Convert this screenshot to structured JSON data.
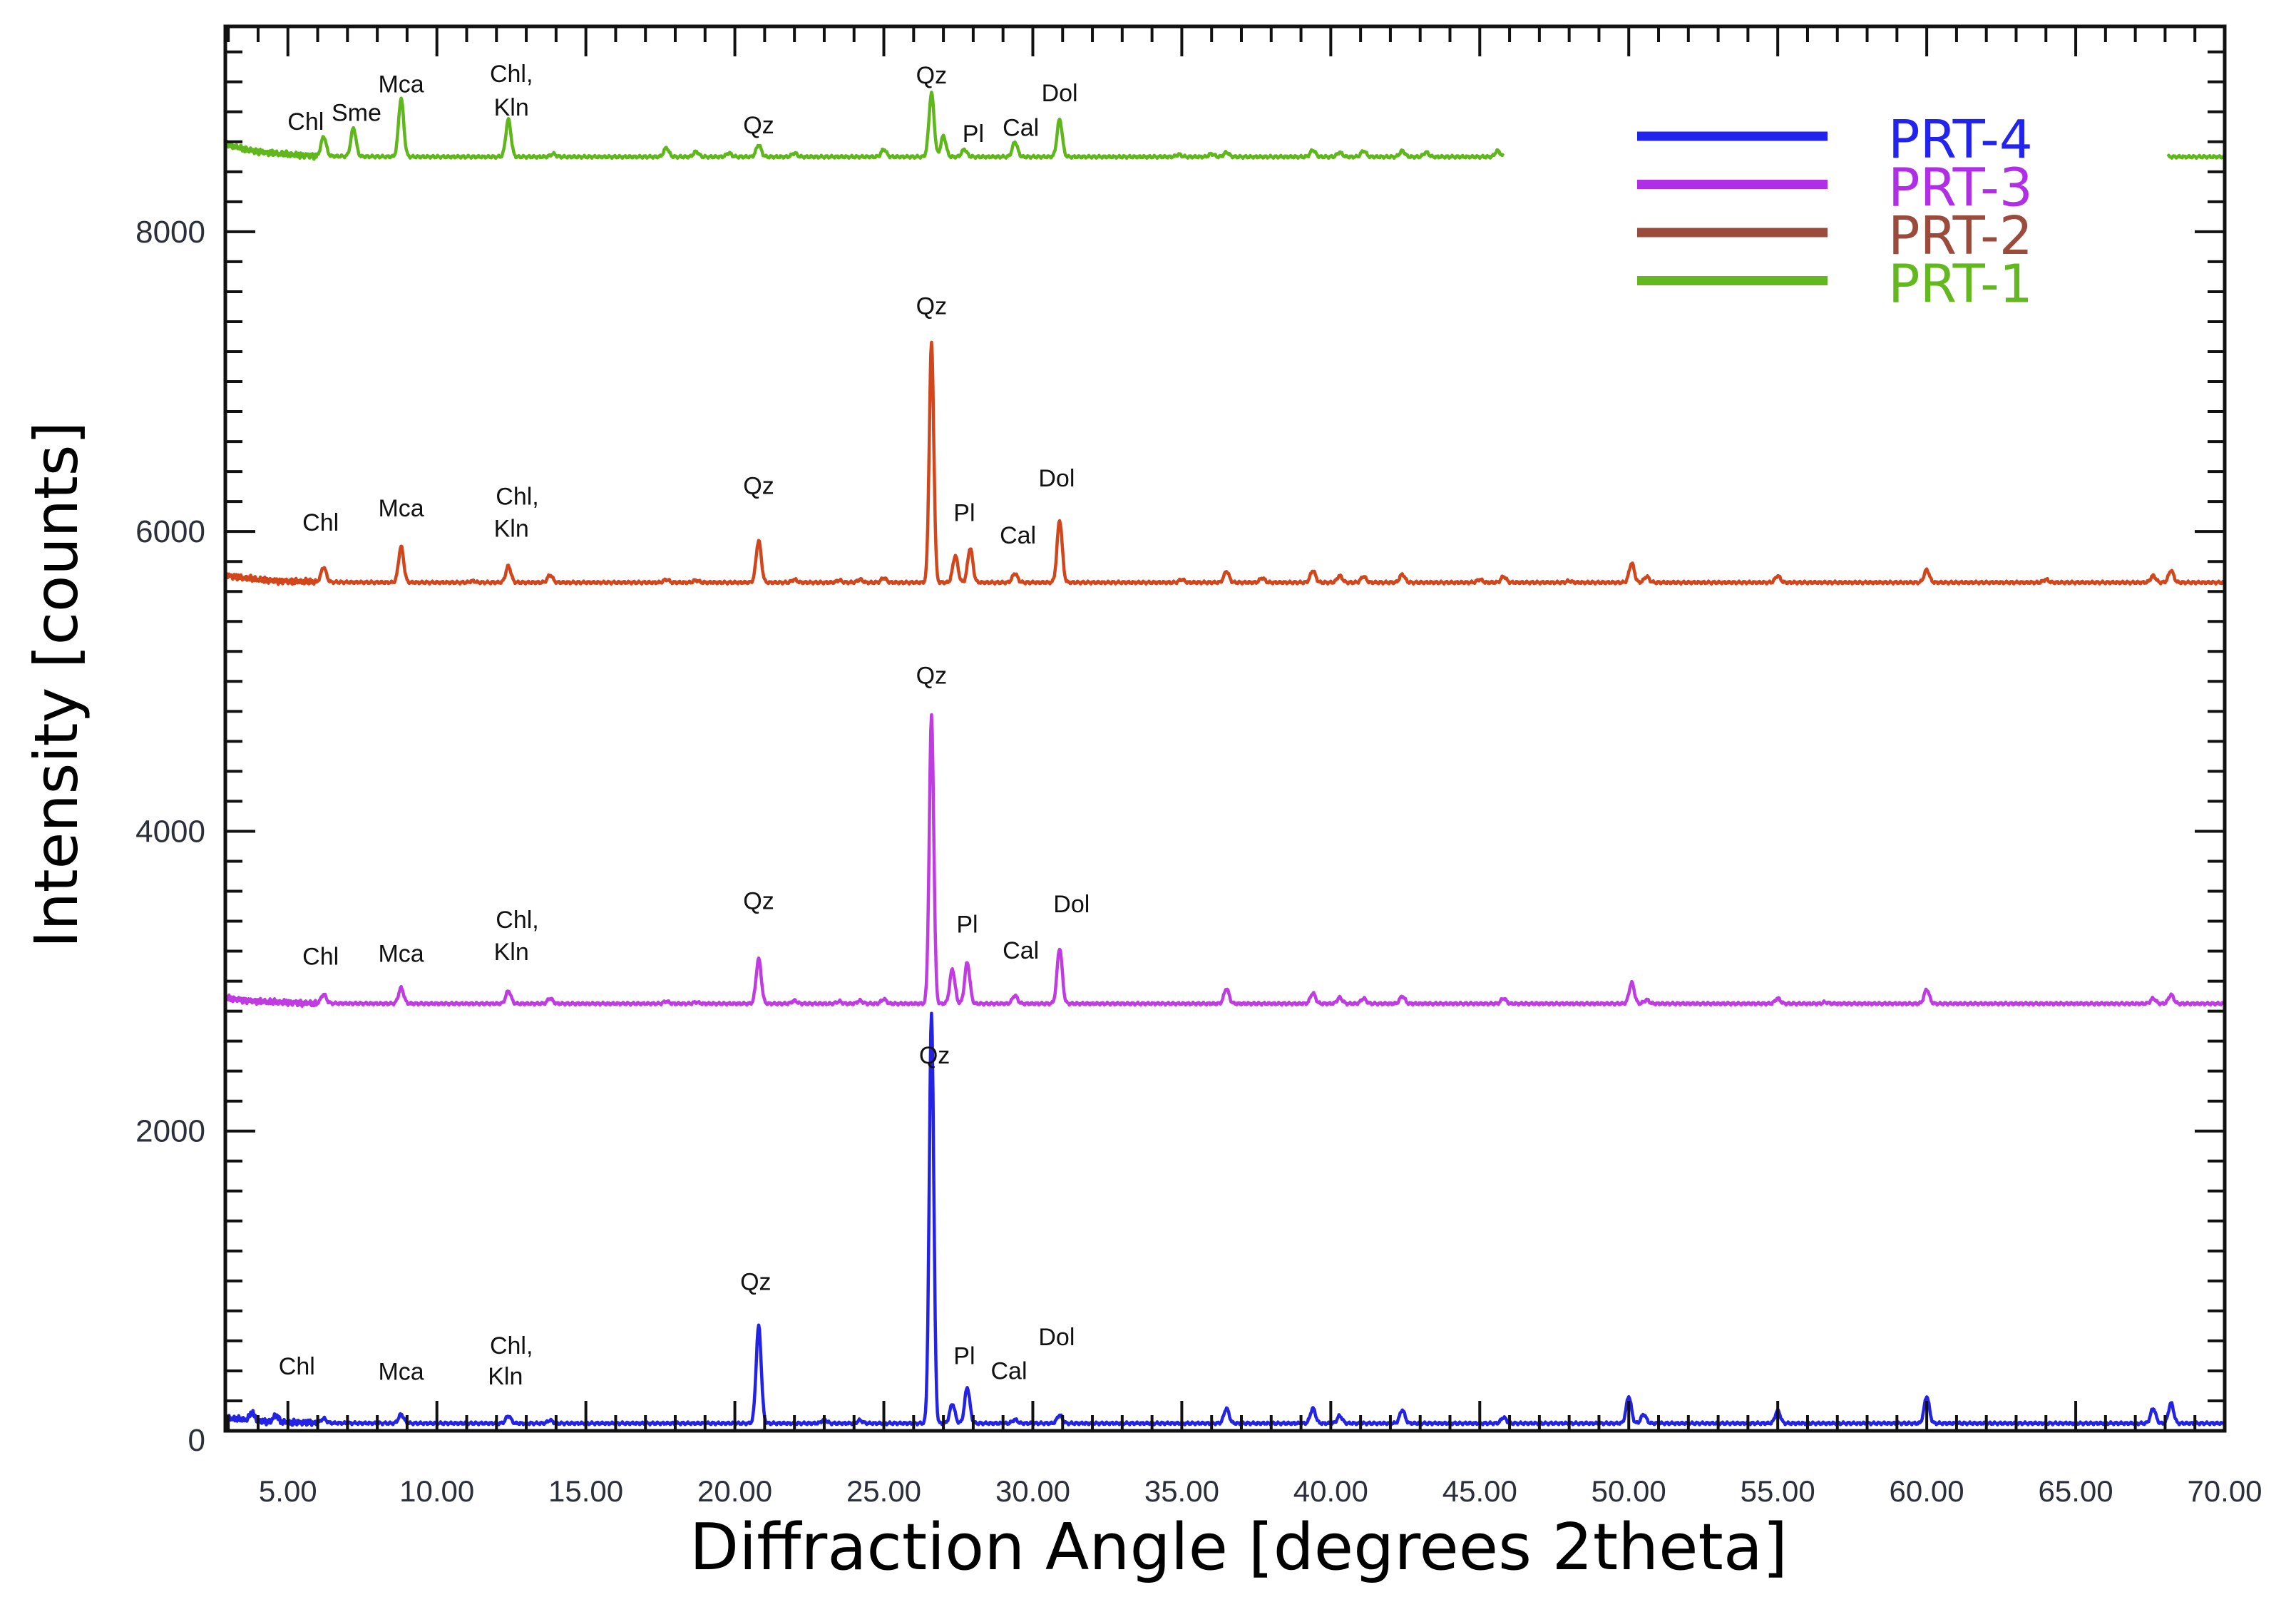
{
  "chart_data": {
    "type": "line",
    "title": "",
    "xlabel": "Diffraction Angle [degrees 2theta]",
    "ylabel": "Intensity [counts]",
    "xlim": [
      2.9,
      70.0
    ],
    "ylim": [
      0,
      9370
    ],
    "grid": false,
    "legend_position": "upper right",
    "x_ticks": [
      5,
      10,
      15,
      20,
      25,
      30,
      35,
      40,
      45,
      50,
      55,
      60,
      65,
      70
    ],
    "x_tick_labels": [
      "5.00",
      "10.00",
      "15.00",
      "20.00",
      "25.00",
      "30.00",
      "35.00",
      "40.00",
      "45.00",
      "50.00",
      "55.00",
      "60.00",
      "65.00",
      "70.00"
    ],
    "y_ticks": [
      0,
      2000,
      4000,
      6000,
      8000
    ],
    "y_tick_labels": [
      "0",
      "2000",
      "4000",
      "6000",
      "8000"
    ],
    "legend": [
      {
        "label": "PRT-4",
        "color": "#2323ee"
      },
      {
        "label": "PRT-3",
        "color": "#b02ee6"
      },
      {
        "label": "PRT-2",
        "color": "#9a4b3c"
      },
      {
        "label": "PRT-1",
        "color": "#62b81e"
      }
    ],
    "series": [
      {
        "name": "PRT-1",
        "color": "#5fb71c",
        "baseline": 8500,
        "left_rise": 90,
        "visible_ranges": [
          [
            2.9,
            45.8
          ],
          [
            68.1,
            70.0
          ]
        ],
        "peaks": [
          {
            "x": 6.2,
            "y": 8630
          },
          {
            "x": 7.2,
            "y": 8690
          },
          {
            "x": 8.8,
            "y": 8890
          },
          {
            "x": 12.4,
            "y": 8750
          },
          {
            "x": 13.9,
            "y": 8520
          },
          {
            "x": 17.7,
            "y": 8560
          },
          {
            "x": 18.7,
            "y": 8535
          },
          {
            "x": 19.8,
            "y": 8525
          },
          {
            "x": 20.8,
            "y": 8580
          },
          {
            "x": 22.0,
            "y": 8525
          },
          {
            "x": 25.0,
            "y": 8550
          },
          {
            "x": 26.6,
            "y": 8925
          },
          {
            "x": 27.0,
            "y": 8640
          },
          {
            "x": 27.7,
            "y": 8550
          },
          {
            "x": 29.4,
            "y": 8600
          },
          {
            "x": 30.9,
            "y": 8750
          },
          {
            "x": 34.9,
            "y": 8515
          },
          {
            "x": 36.0,
            "y": 8520
          },
          {
            "x": 36.5,
            "y": 8530
          },
          {
            "x": 39.4,
            "y": 8545
          },
          {
            "x": 40.3,
            "y": 8530
          },
          {
            "x": 41.1,
            "y": 8540
          },
          {
            "x": 42.4,
            "y": 8540
          },
          {
            "x": 43.2,
            "y": 8530
          },
          {
            "x": 45.6,
            "y": 8540
          }
        ]
      },
      {
        "name": "PRT-2",
        "color": "#d2461c",
        "baseline": 5660,
        "left_rise": 50,
        "visible_ranges": [
          [
            2.9,
            70.0
          ]
        ],
        "peaks": [
          {
            "x": 6.2,
            "y": 5760
          },
          {
            "x": 8.8,
            "y": 5900
          },
          {
            "x": 11.2,
            "y": 5670
          },
          {
            "x": 12.4,
            "y": 5770
          },
          {
            "x": 13.8,
            "y": 5710
          },
          {
            "x": 17.7,
            "y": 5680
          },
          {
            "x": 18.7,
            "y": 5675
          },
          {
            "x": 20.8,
            "y": 5940
          },
          {
            "x": 22.0,
            "y": 5680
          },
          {
            "x": 23.5,
            "y": 5675
          },
          {
            "x": 24.2,
            "y": 5680
          },
          {
            "x": 25.0,
            "y": 5690
          },
          {
            "x": 26.6,
            "y": 7260
          },
          {
            "x": 27.4,
            "y": 5840
          },
          {
            "x": 27.9,
            "y": 5890
          },
          {
            "x": 29.4,
            "y": 5720
          },
          {
            "x": 30.9,
            "y": 6075
          },
          {
            "x": 35.0,
            "y": 5680
          },
          {
            "x": 36.5,
            "y": 5735
          },
          {
            "x": 37.7,
            "y": 5690
          },
          {
            "x": 39.4,
            "y": 5740
          },
          {
            "x": 40.3,
            "y": 5705
          },
          {
            "x": 41.1,
            "y": 5700
          },
          {
            "x": 42.4,
            "y": 5715
          },
          {
            "x": 45.0,
            "y": 5680
          },
          {
            "x": 45.8,
            "y": 5700
          },
          {
            "x": 48.0,
            "y": 5670
          },
          {
            "x": 50.1,
            "y": 5790
          },
          {
            "x": 50.6,
            "y": 5700
          },
          {
            "x": 55.0,
            "y": 5705
          },
          {
            "x": 60.0,
            "y": 5745
          },
          {
            "x": 64.0,
            "y": 5680
          },
          {
            "x": 67.6,
            "y": 5705
          },
          {
            "x": 68.2,
            "y": 5740
          }
        ]
      },
      {
        "name": "PRT-3",
        "color": "#c03be2",
        "baseline": 2850,
        "left_rise": 40,
        "visible_ranges": [
          [
            2.9,
            70.0
          ]
        ],
        "peaks": [
          {
            "x": 6.2,
            "y": 2910
          },
          {
            "x": 8.8,
            "y": 2955
          },
          {
            "x": 12.4,
            "y": 2935
          },
          {
            "x": 13.8,
            "y": 2885
          },
          {
            "x": 17.7,
            "y": 2865
          },
          {
            "x": 18.7,
            "y": 2860
          },
          {
            "x": 20.8,
            "y": 3150
          },
          {
            "x": 22.0,
            "y": 2870
          },
          {
            "x": 23.5,
            "y": 2865
          },
          {
            "x": 24.2,
            "y": 2870
          },
          {
            "x": 25.0,
            "y": 2880
          },
          {
            "x": 26.6,
            "y": 4770
          },
          {
            "x": 27.3,
            "y": 3080
          },
          {
            "x": 27.8,
            "y": 3125
          },
          {
            "x": 29.4,
            "y": 2905
          },
          {
            "x": 30.9,
            "y": 3220
          },
          {
            "x": 36.5,
            "y": 2950
          },
          {
            "x": 39.4,
            "y": 2920
          },
          {
            "x": 40.3,
            "y": 2890
          },
          {
            "x": 41.1,
            "y": 2885
          },
          {
            "x": 42.4,
            "y": 2900
          },
          {
            "x": 45.8,
            "y": 2885
          },
          {
            "x": 50.1,
            "y": 2990
          },
          {
            "x": 50.6,
            "y": 2875
          },
          {
            "x": 55.0,
            "y": 2885
          },
          {
            "x": 56.6,
            "y": 2860
          },
          {
            "x": 60.0,
            "y": 2945
          },
          {
            "x": 67.6,
            "y": 2885
          },
          {
            "x": 68.2,
            "y": 2910
          }
        ]
      },
      {
        "name": "PRT-4",
        "color": "#2323e6",
        "baseline": 50,
        "left_rise": 40,
        "visible_ranges": [
          [
            2.9,
            70.0
          ]
        ],
        "peaks": [
          {
            "x": 3.8,
            "y": 100
          },
          {
            "x": 4.6,
            "y": 95
          },
          {
            "x": 6.2,
            "y": 80
          },
          {
            "x": 8.8,
            "y": 110
          },
          {
            "x": 12.4,
            "y": 100
          },
          {
            "x": 13.8,
            "y": 70
          },
          {
            "x": 20.8,
            "y": 700
          },
          {
            "x": 23.0,
            "y": 75
          },
          {
            "x": 24.2,
            "y": 70
          },
          {
            "x": 26.6,
            "y": 2790
          },
          {
            "x": 27.3,
            "y": 180
          },
          {
            "x": 27.8,
            "y": 290
          },
          {
            "x": 29.4,
            "y": 75
          },
          {
            "x": 30.9,
            "y": 105
          },
          {
            "x": 36.5,
            "y": 150
          },
          {
            "x": 39.4,
            "y": 150
          },
          {
            "x": 40.3,
            "y": 100
          },
          {
            "x": 42.4,
            "y": 140
          },
          {
            "x": 45.8,
            "y": 90
          },
          {
            "x": 50.0,
            "y": 230
          },
          {
            "x": 50.5,
            "y": 110
          },
          {
            "x": 55.0,
            "y": 135
          },
          {
            "x": 60.0,
            "y": 230
          },
          {
            "x": 67.6,
            "y": 150
          },
          {
            "x": 68.2,
            "y": 185
          }
        ]
      }
    ],
    "annotations": [
      {
        "series": "PRT-1",
        "text": "Chl",
        "x": 5.6,
        "y": 8680
      },
      {
        "series": "PRT-1",
        "text": "Sme",
        "x": 7.3,
        "y": 8740
      },
      {
        "series": "PRT-1",
        "text": "Mca",
        "x": 8.8,
        "y": 8930
      },
      {
        "series": "PRT-1",
        "text": "Chl,",
        "x": 12.5,
        "y": 9000
      },
      {
        "series": "PRT-1",
        "text": "Kln",
        "x": 12.5,
        "y": 8775
      },
      {
        "series": "PRT-1",
        "text": "Qz",
        "x": 20.8,
        "y": 8655
      },
      {
        "series": "PRT-1",
        "text": "Qz",
        "x": 26.6,
        "y": 8990
      },
      {
        "series": "PRT-1",
        "text": "Pl",
        "x": 28.0,
        "y": 8600
      },
      {
        "series": "PRT-1",
        "text": "Cal",
        "x": 29.6,
        "y": 8640
      },
      {
        "series": "PRT-1",
        "text": "Dol",
        "x": 30.9,
        "y": 8870
      },
      {
        "series": "PRT-2",
        "text": "Chl",
        "x": 6.1,
        "y": 6005
      },
      {
        "series": "PRT-2",
        "text": "Mca",
        "x": 8.8,
        "y": 6100
      },
      {
        "series": "PRT-2",
        "text": "Chl,",
        "x": 12.7,
        "y": 6180
      },
      {
        "series": "PRT-2",
        "text": "Kln",
        "x": 12.5,
        "y": 5965
      },
      {
        "series": "PRT-2",
        "text": "Qz",
        "x": 20.8,
        "y": 6250
      },
      {
        "series": "PRT-2",
        "text": "Qz",
        "x": 26.6,
        "y": 7450
      },
      {
        "series": "PRT-2",
        "text": "Pl",
        "x": 27.7,
        "y": 6070
      },
      {
        "series": "PRT-2",
        "text": "Cal",
        "x": 29.5,
        "y": 5920
      },
      {
        "series": "PRT-2",
        "text": "Dol",
        "x": 30.8,
        "y": 6300
      },
      {
        "series": "PRT-3",
        "text": "Chl",
        "x": 6.1,
        "y": 3110
      },
      {
        "series": "PRT-3",
        "text": "Mca",
        "x": 8.8,
        "y": 3130
      },
      {
        "series": "PRT-3",
        "text": "Chl,",
        "x": 12.7,
        "y": 3355
      },
      {
        "series": "PRT-3",
        "text": "Kln",
        "x": 12.5,
        "y": 3140
      },
      {
        "series": "PRT-3",
        "text": "Qz",
        "x": 20.8,
        "y": 3480
      },
      {
        "series": "PRT-3",
        "text": "Qz",
        "x": 26.6,
        "y": 4985
      },
      {
        "series": "PRT-3",
        "text": "Pl",
        "x": 27.8,
        "y": 3325
      },
      {
        "series": "PRT-3",
        "text": "Cal",
        "x": 29.6,
        "y": 3150
      },
      {
        "series": "PRT-3",
        "text": "Dol",
        "x": 31.3,
        "y": 3460
      },
      {
        "series": "PRT-4",
        "text": "Chl",
        "x": 5.3,
        "y": 375
      },
      {
        "series": "PRT-4",
        "text": "Mca",
        "x": 8.8,
        "y": 340
      },
      {
        "series": "PRT-4",
        "text": "Chl,",
        "x": 12.5,
        "y": 515
      },
      {
        "series": "PRT-4",
        "text": "Kln",
        "x": 12.3,
        "y": 310
      },
      {
        "series": "PRT-4",
        "text": "Qz",
        "x": 20.7,
        "y": 940
      },
      {
        "series": "PRT-4",
        "text": "Qz",
        "x": 26.7,
        "y": 2450
      },
      {
        "series": "PRT-4",
        "text": "Pl",
        "x": 27.7,
        "y": 445
      },
      {
        "series": "PRT-4",
        "text": "Cal",
        "x": 29.2,
        "y": 345
      },
      {
        "series": "PRT-4",
        "text": "Dol",
        "x": 30.8,
        "y": 570
      }
    ]
  }
}
